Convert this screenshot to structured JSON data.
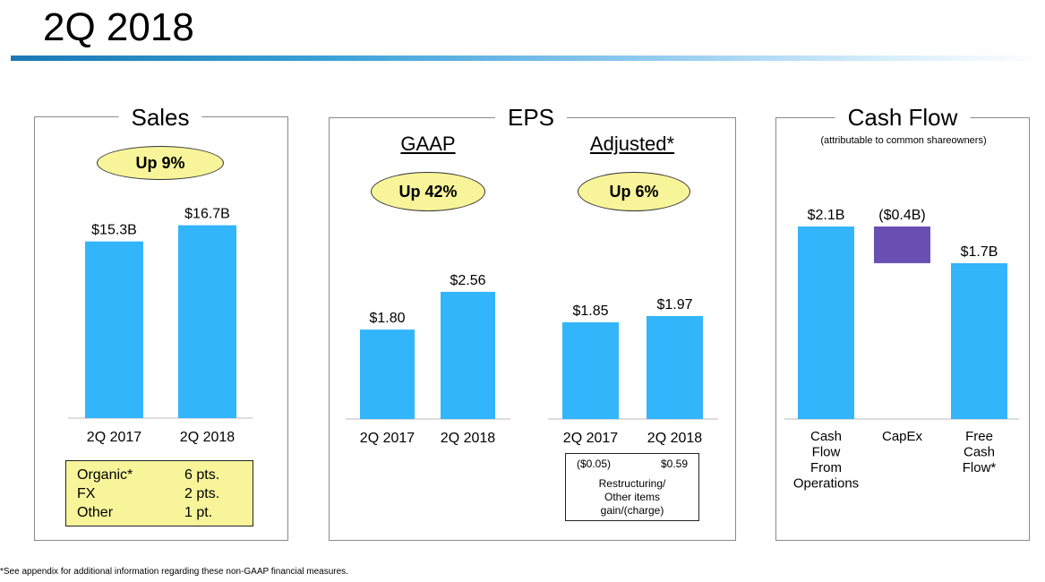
{
  "page_title": "2Q 2018",
  "footnote": "*See appendix for additional information regarding these non-GAAP financial measures.",
  "sales": {
    "title": "Sales",
    "badge": "Up 9%",
    "mix": [
      {
        "label": "Organic*",
        "value": "6 pts."
      },
      {
        "label": "FX",
        "value": "2 pts."
      },
      {
        "label": "Other",
        "value": "1 pt."
      }
    ]
  },
  "eps": {
    "title": "EPS",
    "gaap_title": "GAAP",
    "gaap_badge": "Up 42%",
    "adjusted_title": "Adjusted*",
    "adjusted_badge": "Up 6%",
    "restructuring": {
      "values": [
        "($0.05)",
        "$0.59"
      ],
      "caption": [
        "Restructuring/",
        "Other items",
        "gain/(charge)"
      ]
    }
  },
  "cash_flow": {
    "title": "Cash Flow",
    "subtitle": "(attributable to common shareowners)"
  },
  "colors": {
    "bar": "#33b5fb",
    "capex": "#6a4fb3",
    "badge": "#f7f49a"
  },
  "chart_data": [
    {
      "type": "bar",
      "title": "Sales",
      "categories": [
        "2Q 2017",
        "2Q 2018"
      ],
      "values": [
        15.3,
        16.7
      ],
      "data_labels": [
        "$15.3B",
        "$16.7B"
      ],
      "unit": "$B"
    },
    {
      "type": "bar",
      "title": "GAAP",
      "categories": [
        "2Q 2017",
        "2Q 2018"
      ],
      "values": [
        1.8,
        2.56
      ],
      "data_labels": [
        "$1.80",
        "$2.56"
      ],
      "unit": "$"
    },
    {
      "type": "bar",
      "title": "Adjusted*",
      "categories": [
        "2Q 2017",
        "2Q 2018"
      ],
      "values": [
        1.85,
        1.97
      ],
      "data_labels": [
        "$1.85",
        "$1.97"
      ],
      "unit": "$"
    },
    {
      "type": "bar",
      "subtype": "waterfall",
      "title": "Cash Flow",
      "categories": [
        "Cash Flow From Operations",
        "CapEx",
        "Free Cash Flow*"
      ],
      "category_lines": [
        [
          "Cash",
          "Flow",
          "From",
          "Operations"
        ],
        [
          "CapEx"
        ],
        [
          "Free",
          "Cash",
          "Flow*"
        ]
      ],
      "values": [
        2.1,
        -0.4,
        1.7
      ],
      "data_labels": [
        "$2.1B",
        "($0.4B)",
        "$1.7B"
      ],
      "unit": "$B"
    }
  ]
}
